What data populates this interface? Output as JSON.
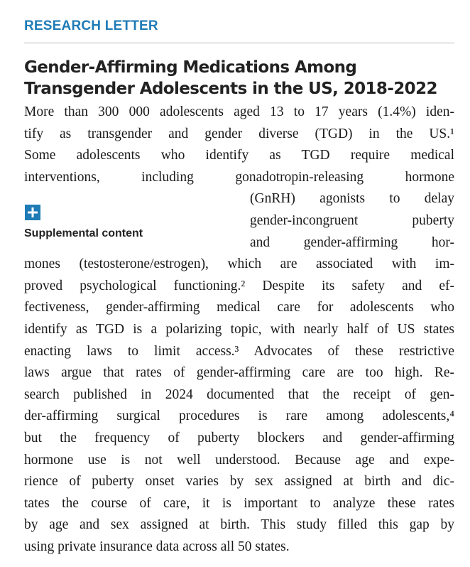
{
  "header": {
    "section": "RESEARCH LETTER"
  },
  "title": {
    "lines": [
      "Gender-Affirming Medications Among",
      "Transgender Adolescents in the US, 2018-2022"
    ]
  },
  "supplemental": {
    "label": "Supplemental content"
  },
  "body": {
    "lines": [
      "More than 300 000 adolescents aged 13 to 17 years (1.4%) iden-",
      "tify as transgender and gender diverse (TGD) in the US.¹",
      "Some adolescents who identify as TGD require medical",
      "interventions, including gonadotropin-releasing hormone",
      "(GnRH) agonists to delay",
      "gender-incongruent puberty",
      "and gender-affirming hor-",
      "mones (testosterone/estrogen), which are associated with im-",
      "proved psychological functioning.² Despite its safety and ef-",
      "fectiveness, gender-affirming medical care for adolescents who",
      "identify as TGD is a polarizing topic, with nearly half of US states",
      "enacting laws to limit access.³ Advocates of these restrictive",
      "laws argue that rates of gender-affirming care are too high. Re-",
      "search published in 2024 documented that the receipt of gen-",
      "der-affirming surgical procedures is rare among adolescents,⁴",
      "but the frequency of puberty blockers and gender-affirming",
      "hormone use is not well understood. Because age and expe-",
      "rience of puberty onset varies by sex assigned at birth and dic-",
      "tates the course of care, it is important to analyze these rates",
      "by age and sex assigned at birth. This study filled this gap by",
      "using private insurance data across all 50 states."
    ]
  }
}
